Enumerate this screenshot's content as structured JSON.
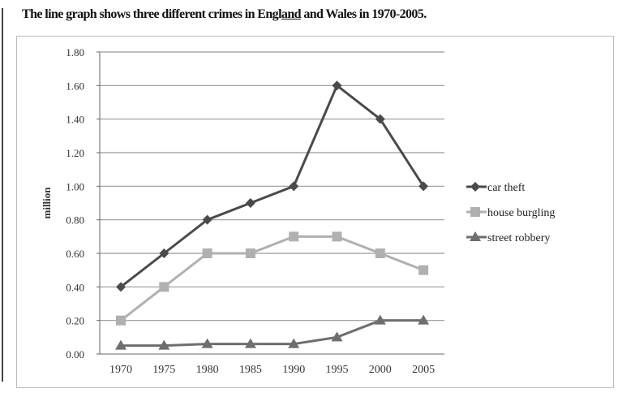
{
  "title_parts": [
    "The line graph shows three different crimes in Engl",
    "and",
    " and Wales in 1970-2005."
  ],
  "chart_data": {
    "type": "line",
    "title": "The line graph shows three different crimes in England and Wales in 1970-2005.",
    "xlabel": "",
    "ylabel": "million",
    "ylim": [
      0,
      1.8
    ],
    "yticks": [
      "0.00",
      "0.20",
      "0.40",
      "0.60",
      "0.80",
      "1.00",
      "1.20",
      "1.40",
      "1.60",
      "1.80"
    ],
    "categories": [
      "1970",
      "1975",
      "1980",
      "1985",
      "1990",
      "1995",
      "2000",
      "2005"
    ],
    "grid": true,
    "legend_position": "right",
    "series": [
      {
        "name": "car theft",
        "marker": "diamond",
        "color": "#4a4a4a",
        "values": [
          0.4,
          0.6,
          0.8,
          0.9,
          1.0,
          1.6,
          1.4,
          1.0
        ]
      },
      {
        "name": "house burgling",
        "marker": "square",
        "color": "#b0b0b0",
        "values": [
          0.2,
          0.4,
          0.6,
          0.6,
          0.7,
          0.7,
          0.6,
          0.5
        ]
      },
      {
        "name": "street robbery",
        "marker": "triangle",
        "color": "#6e6e6e",
        "values": [
          0.05,
          0.05,
          0.06,
          0.06,
          0.06,
          0.1,
          0.2,
          0.2
        ]
      }
    ]
  }
}
